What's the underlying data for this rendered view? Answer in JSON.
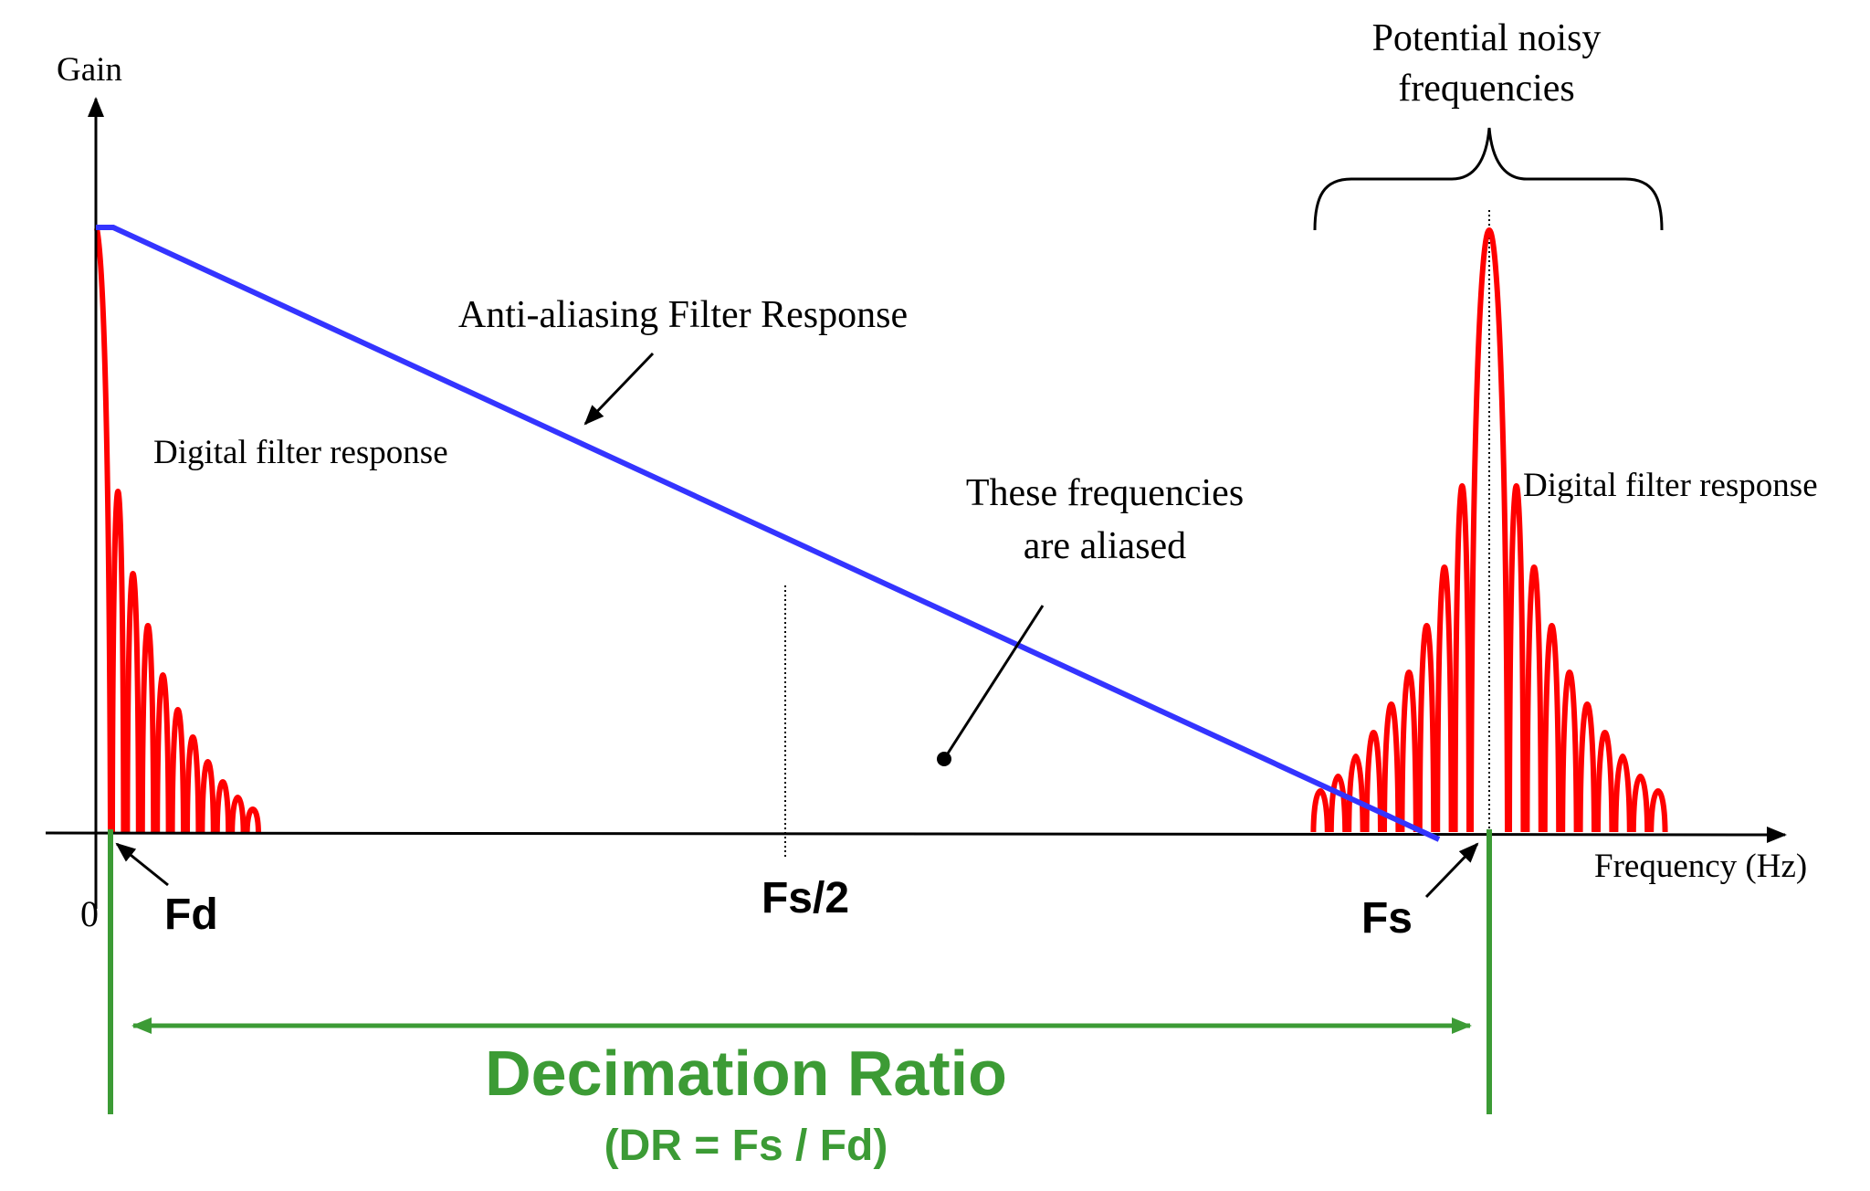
{
  "axes": {
    "y_label": "Gain",
    "x_label": "Frequency (Hz)",
    "origin_label": "0"
  },
  "markers": {
    "fd": "Fd",
    "fs_half": "Fs/2",
    "fs": "Fs"
  },
  "annotations": {
    "noisy_line1": "Potential noisy",
    "noisy_line2": "frequencies",
    "anti_aliasing": "Anti-aliasing Filter Response",
    "digital_left": "Digital filter response",
    "digital_right": "Digital filter response",
    "aliased_line1": "These frequencies",
    "aliased_line2": "are aliased"
  },
  "decimation": {
    "title": "Decimation Ratio",
    "formula": "(DR = Fs / Fd)"
  },
  "colors": {
    "digital_filter": "#ff0000",
    "anti_aliasing_filter": "#3434ff",
    "decimation": "#3c9b35",
    "axis": "#000000"
  }
}
